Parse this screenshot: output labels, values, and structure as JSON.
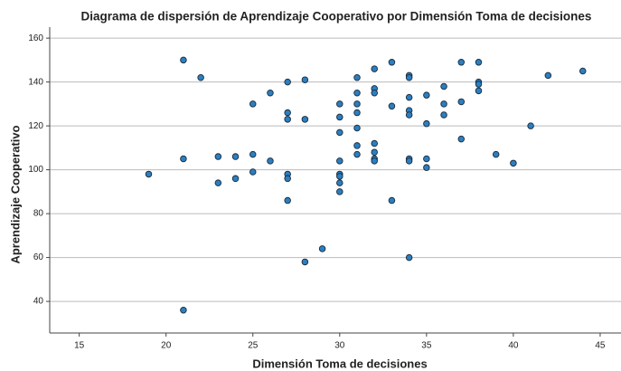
{
  "chart_data": {
    "type": "scatter",
    "title": "Diagrama de dispersión de Aprendizaje Cooperativo por Dimensión Toma de decisiones",
    "x_label": "Dimensión Toma de decisiones",
    "y_label": "Aprendizaje Cooperativo",
    "color": "#2b7fc1",
    "grid": true,
    "xlim": [
      13.3,
      46.2
    ],
    "ylim": [
      25.6,
      165
    ],
    "xticks": [
      15,
      20,
      25,
      30,
      35,
      40,
      45
    ],
    "yticks": [
      40,
      60,
      80,
      100,
      120,
      140,
      160
    ],
    "x": [
      21,
      22,
      19,
      21,
      21,
      23,
      23,
      24,
      24,
      25,
      25,
      25,
      26,
      26,
      27,
      27,
      27,
      27,
      27,
      27,
      28,
      28,
      28,
      29,
      30,
      30,
      30,
      30,
      30,
      30,
      30,
      30,
      31,
      31,
      31,
      31,
      31,
      31,
      31,
      32,
      32,
      32,
      32,
      32,
      32,
      32,
      33,
      33,
      33,
      34,
      34,
      34,
      34,
      34,
      34,
      34,
      34,
      35,
      35,
      35,
      35,
      36,
      36,
      36,
      37,
      37,
      37,
      38,
      38,
      38,
      38,
      39,
      40,
      41,
      42,
      44
    ],
    "values": [
      150,
      142,
      98,
      105,
      36,
      106,
      94,
      106,
      96,
      130,
      107,
      99,
      135,
      104,
      140,
      126,
      123,
      98,
      96,
      86,
      141,
      123,
      58,
      64,
      130,
      124,
      117,
      104,
      98,
      97,
      94,
      90,
      142,
      135,
      130,
      126,
      119,
      111,
      107,
      146,
      137,
      135,
      112,
      108,
      105,
      104,
      149,
      129,
      86,
      143,
      142,
      133,
      127,
      125,
      105,
      104,
      60,
      134,
      121,
      105,
      101,
      138,
      130,
      125,
      149,
      131,
      114,
      149,
      140,
      139,
      136,
      107,
      103,
      120,
      143,
      145
    ]
  }
}
